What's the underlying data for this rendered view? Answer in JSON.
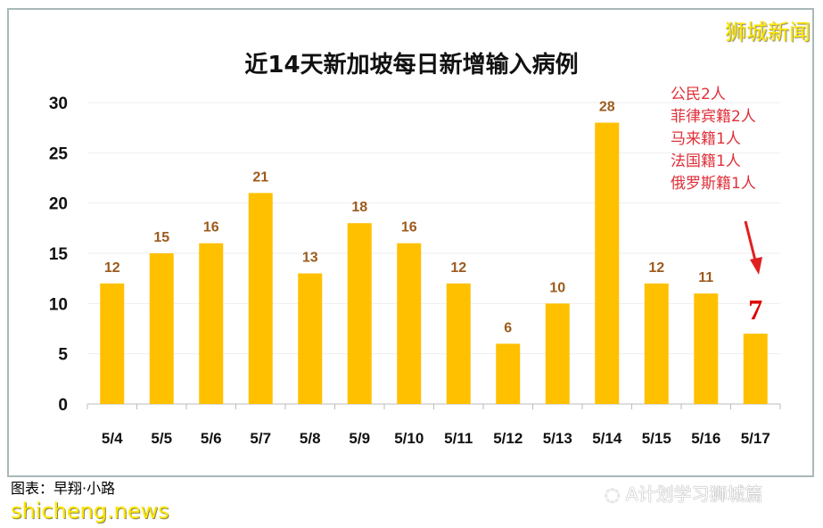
{
  "chart_data": {
    "type": "bar",
    "title": "近14天新加坡每日新增输入病例",
    "categories": [
      "5/4",
      "5/5",
      "5/6",
      "5/7",
      "5/8",
      "5/9",
      "5/10",
      "5/11",
      "5/12",
      "5/13",
      "5/14",
      "5/15",
      "5/16",
      "5/17"
    ],
    "values": [
      12,
      15,
      16,
      21,
      13,
      18,
      16,
      12,
      6,
      10,
      28,
      12,
      11,
      7
    ],
    "ylim": [
      0,
      30
    ],
    "yticks": [
      0,
      5,
      10,
      15,
      20,
      25,
      30
    ],
    "grid": true,
    "bar_color": "#ffc000",
    "label_color": "#9c5a1c",
    "highlight_label_color": "#e00000",
    "annotation": [
      "公民2人",
      "菲律宾籍2人",
      "马来籍1人",
      "法国籍1人",
      "俄罗斯籍1人"
    ]
  },
  "brand": "狮城新闻",
  "credit": "图表：早翔·小路",
  "site": "shicheng.news",
  "wechat": "A计划学习狮城篇"
}
